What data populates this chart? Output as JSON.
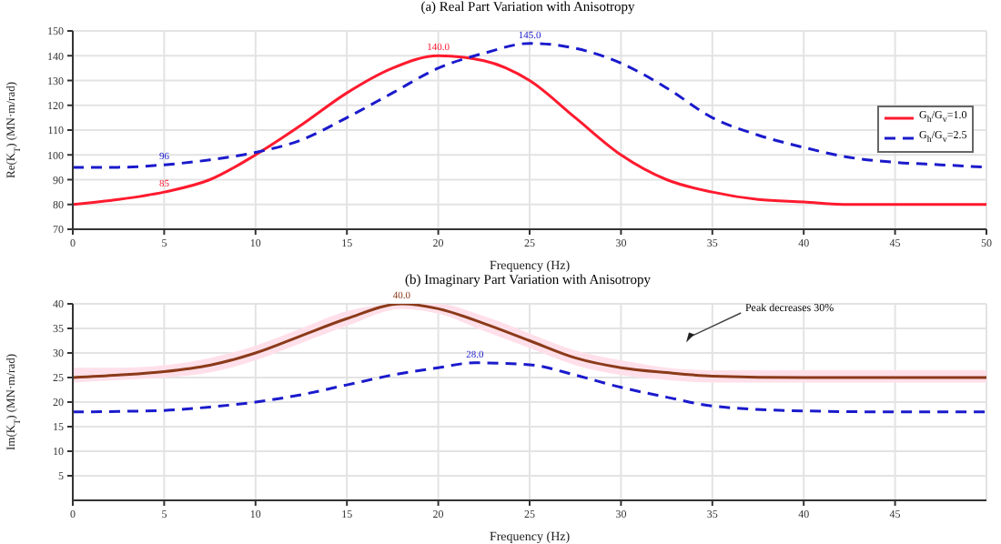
{
  "chart_data": [
    {
      "type": "line",
      "title": "(a) Real Part Variation with Anisotropy",
      "xlabel": "Frequency (Hz)",
      "ylabel": "Re(K$_{T}$) (MN·m/rad)",
      "x": [
        0,
        2.5,
        5,
        7.5,
        10,
        12.5,
        15,
        17.5,
        20,
        22.5,
        25,
        27.5,
        30,
        32.5,
        35,
        37.5,
        40,
        42.5,
        45,
        47.5,
        50
      ],
      "series": [
        {
          "name": "G$_{h}$/G$_{v}$=1.0",
          "color": "#ff1a2e",
          "line_style": "solid",
          "values": [
            80,
            82,
            85,
            90,
            100,
            112,
            125,
            135,
            140,
            138,
            130,
            115,
            100,
            90,
            85,
            82,
            81,
            80,
            80,
            80,
            80
          ],
          "value_labels": [
            null,
            null,
            "85",
            null,
            null,
            null,
            null,
            null,
            "140.0",
            null,
            null,
            null,
            null,
            null,
            null,
            null,
            null,
            null,
            null,
            null,
            null
          ]
        },
        {
          "name": "G$_{h}$/G$_{v}$=2.5",
          "color": "#1a1acc",
          "line_style": "dashed",
          "values": [
            95,
            95,
            96,
            98,
            101,
            106,
            115,
            125,
            135,
            141,
            145,
            143,
            137,
            127,
            115,
            108,
            103,
            99,
            97,
            96,
            95
          ],
          "value_labels": [
            null,
            null,
            "96",
            null,
            null,
            null,
            null,
            null,
            null,
            null,
            "145.0",
            null,
            null,
            null,
            null,
            null,
            null,
            null,
            null,
            null,
            null
          ]
        }
      ],
      "xlim": [
        0,
        50
      ],
      "xticks": [
        0,
        5,
        10,
        15,
        20,
        25,
        30,
        35,
        40,
        45,
        50
      ],
      "ylim": [
        70,
        150
      ],
      "yticks": [
        70,
        80,
        90,
        100,
        110,
        120,
        130,
        140,
        150
      ],
      "grid": true,
      "legend": "right"
    },
    {
      "type": "line",
      "title": "(b) Imaginary Part Variation with Anisotropy",
      "xlabel": "Frequency (Hz)",
      "ylabel": "Im(K$_{T}$) (MN·m/rad)",
      "series": [
        {
          "color": "#8b3a1a",
          "line_style": "solid",
          "x": [
            0,
            2.5,
            5,
            7.5,
            10,
            12.5,
            15,
            18,
            20,
            22.5,
            25,
            27.5,
            30,
            32.5,
            35,
            40,
            45,
            50
          ],
          "values": [
            25,
            25.5,
            26.2,
            27.5,
            30,
            33.5,
            37,
            40,
            39,
            36,
            32.5,
            29,
            27,
            26,
            25.3,
            25,
            25,
            25
          ],
          "lower": [
            24,
            24.5,
            25,
            26,
            28.5,
            32,
            35.5,
            39,
            38,
            34.5,
            31,
            27.5,
            25.5,
            24.5,
            24,
            24,
            24,
            24
          ],
          "upper": [
            27,
            27,
            27.5,
            29,
            31.5,
            35,
            38.5,
            40,
            40,
            37.5,
            34,
            30.5,
            28.5,
            27,
            26.5,
            26.5,
            26.5,
            26.5
          ],
          "value_labels": [
            null,
            null,
            null,
            null,
            null,
            null,
            null,
            "40.0",
            null,
            null,
            null,
            null,
            null,
            null,
            null,
            null,
            null,
            null
          ]
        },
        {
          "color": "#1a1acc",
          "line_style": "dashed",
          "x": [
            0,
            2.5,
            5,
            7.5,
            10,
            12.5,
            15,
            17.5,
            20,
            22,
            25,
            27.5,
            30,
            32.5,
            35,
            40,
            45,
            50
          ],
          "values": [
            18,
            18.1,
            18.3,
            19,
            20,
            21.5,
            23.5,
            25.5,
            27,
            28,
            27.6,
            25.5,
            23,
            21,
            19.2,
            18.2,
            18,
            18
          ],
          "value_labels": [
            null,
            null,
            null,
            null,
            null,
            null,
            null,
            null,
            null,
            "28.0",
            null,
            null,
            null,
            null,
            null,
            null,
            null,
            null
          ]
        }
      ],
      "annotations": [
        "Peak decreases 30%"
      ],
      "xlim": [
        0,
        50
      ],
      "xticks": [
        0,
        5,
        10,
        15,
        20,
        25,
        30,
        35,
        40,
        45
      ],
      "ylim": [
        0,
        40
      ],
      "yticks": [
        5,
        10,
        15,
        20,
        25,
        30,
        35,
        40
      ],
      "grid": true
    }
  ]
}
